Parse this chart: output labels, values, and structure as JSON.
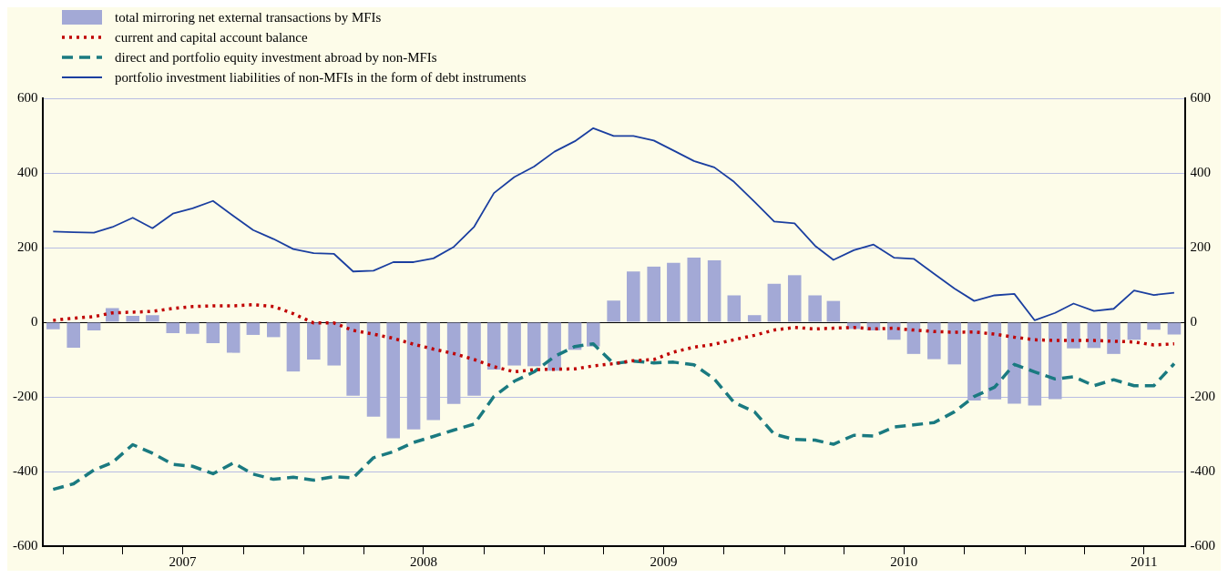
{
  "chart_data": {
    "type": "bar",
    "x": [
      "2006-12-16",
      "2007-01-16",
      "2007-02-16",
      "2007-03-16",
      "2007-04-16",
      "2007-05-16",
      "2007-06-16",
      "2007-07-16",
      "2007-08-16",
      "2007-09-16",
      "2007-10-16",
      "2007-11-16",
      "2007-12-16",
      "2008-01-16",
      "2008-02-16",
      "2008-03-16",
      "2008-04-16",
      "2008-05-16",
      "2008-06-16",
      "2008-07-16",
      "2008-08-16",
      "2008-09-16",
      "2008-10-16",
      "2008-11-16",
      "2008-12-16",
      "2009-01-16",
      "2009-02-16",
      "2009-03-16",
      "2009-04-16",
      "2009-05-16",
      "2009-06-16",
      "2009-07-16",
      "2009-08-16",
      "2009-09-16",
      "2009-10-16",
      "2009-11-16",
      "2009-12-16",
      "2010-01-16",
      "2010-02-16",
      "2010-03-16",
      "2010-04-16",
      "2010-05-16",
      "2010-06-16",
      "2010-07-16",
      "2010-08-16",
      "2010-09-16",
      "2010-10-16",
      "2010-11-16",
      "2010-12-16",
      "2011-01-16",
      "2011-02-16",
      "2011-03-16",
      "2011-04-16",
      "2011-05-16",
      "2011-06-16",
      "2011-07-16",
      "2011-08-16"
    ],
    "xlim": [
      "2006-12-01",
      "2011-09-01"
    ],
    "xticks": [
      {
        "value": "2007-01-01",
        "label": null
      },
      {
        "value": "2007-04-01",
        "label": null
      },
      {
        "value": "2007-07-01",
        "label": "2007"
      },
      {
        "value": "2007-10-01",
        "label": null
      },
      {
        "value": "2008-01-01",
        "label": null
      },
      {
        "value": "2008-04-01",
        "label": null
      },
      {
        "value": "2008-07-01",
        "label": "2008"
      },
      {
        "value": "2008-10-01",
        "label": null
      },
      {
        "value": "2009-01-01",
        "label": null
      },
      {
        "value": "2009-04-01",
        "label": null
      },
      {
        "value": "2009-07-01",
        "label": "2009"
      },
      {
        "value": "2009-10-01",
        "label": null
      },
      {
        "value": "2010-01-01",
        "label": null
      },
      {
        "value": "2010-04-01",
        "label": null
      },
      {
        "value": "2010-07-01",
        "label": "2010"
      },
      {
        "value": "2010-10-01",
        "label": null
      },
      {
        "value": "2011-01-01",
        "label": null
      },
      {
        "value": "2011-04-01",
        "label": null
      },
      {
        "value": "2011-07-01",
        "label": "2011"
      }
    ],
    "ylim": [
      -600,
      600
    ],
    "yticks": [
      -600,
      -400,
      -200,
      0,
      200,
      400,
      600
    ],
    "y2lim": [
      -600,
      600
    ],
    "y2ticks": [
      -600,
      -400,
      -200,
      0,
      200,
      400,
      600
    ],
    "grid": "y",
    "legend": "top left",
    "series": [
      {
        "name": "total mirroring net external transactions by MFIs",
        "color": "#a3a9d6",
        "values": [
          -19,
          -68,
          -22,
          38,
          17,
          19,
          -29,
          -31,
          -56,
          -82,
          -34,
          -40,
          -132,
          -100,
          -116,
          -197,
          -253,
          -311,
          -287,
          -262,
          -219,
          -197,
          -127,
          -116,
          -118,
          -130,
          -74,
          -65,
          58,
          136,
          149,
          159,
          173,
          166,
          72,
          19,
          103,
          126,
          72,
          57,
          -18,
          -22,
          -47,
          -85,
          -99,
          -113,
          -210,
          -207,
          -218,
          -223,
          -206,
          -70,
          -69,
          -85,
          -47,
          -20,
          -33
        ]
      },
      {
        "name": "current and capital account balance",
        "type": "line",
        "line_style": "dotted",
        "color": "#c00000",
        "values": [
          5,
          11,
          15,
          25,
          27,
          29,
          37,
          42,
          44,
          44,
          47,
          42,
          23,
          -2,
          -2,
          -22,
          -32,
          -43,
          -59,
          -72,
          -84,
          -100,
          -119,
          -133,
          -127,
          -126,
          -125,
          -117,
          -111,
          -103,
          -100,
          -80,
          -67,
          -59,
          -47,
          -35,
          -21,
          -14,
          -18,
          -16,
          -14,
          -18,
          -16,
          -21,
          -25,
          -27,
          -26,
          -32,
          -40,
          -47,
          -49,
          -49,
          -49,
          -51,
          -53,
          -61,
          -58
        ]
      },
      {
        "name": "direct and portfolio equity investment abroad by non-MFIs",
        "type": "line",
        "line_style": "dashed",
        "color": "#1a7a80",
        "values": [
          -448,
          -433,
          -396,
          -376,
          -328,
          -351,
          -381,
          -386,
          -406,
          -377,
          -407,
          -421,
          -415,
          -423,
          -414,
          -417,
          -363,
          -347,
          -322,
          -306,
          -289,
          -273,
          -199,
          -158,
          -133,
          -92,
          -65,
          -58,
          -111,
          -104,
          -109,
          -107,
          -114,
          -152,
          -215,
          -240,
          -300,
          -314,
          -316,
          -327,
          -303,
          -305,
          -281,
          -275,
          -269,
          -240,
          -199,
          -174,
          -113,
          -133,
          -152,
          -146,
          -170,
          -154,
          -170,
          -170,
          -111
        ]
      },
      {
        "name": "portfolio investment liabilities of non-MFIs in the form of debt instruments",
        "type": "line",
        "line_style": "solid",
        "color": "#1b3fa0",
        "values": [
          243,
          241,
          240,
          255,
          280,
          252,
          291,
          305,
          325,
          285,
          247,
          223,
          196,
          185,
          183,
          136,
          138,
          161,
          161,
          171,
          202,
          256,
          346,
          389,
          417,
          457,
          485,
          520,
          499,
          499,
          487,
          460,
          432,
          415,
          376,
          323,
          270,
          265,
          205,
          167,
          193,
          208,
          173,
          170,
          130,
          90,
          57,
          72,
          76,
          5,
          25,
          50,
          30,
          36,
          85,
          73,
          79
        ]
      }
    ]
  }
}
